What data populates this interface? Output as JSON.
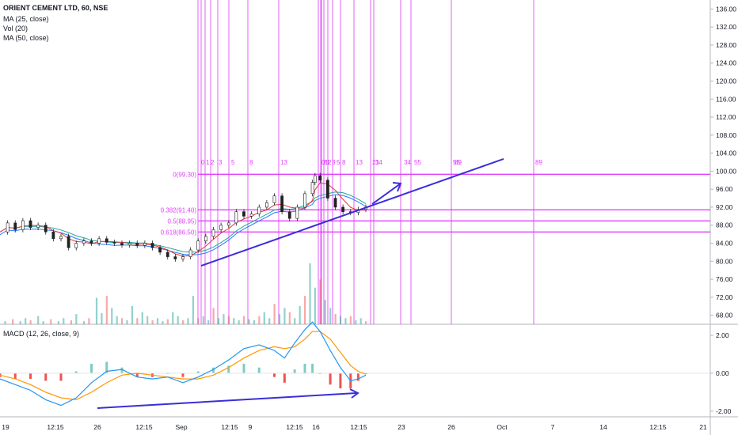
{
  "legend": {
    "symbol": "ORIENT CEMENT LTD, 60, NSE",
    "ma1": "MA (25, close)",
    "vol": "Vol (20)",
    "ma2": "MA (50, close)",
    "macd": "MACD (12, 26, close, 9)"
  },
  "chart_data": {
    "type": "candlestick",
    "price_axis": {
      "min": 66,
      "max": 138,
      "ticks": [
        "68.00",
        "72.00",
        "76.00",
        "80.00",
        "84.00",
        "88.00",
        "92.00",
        "96.00",
        "100.00",
        "104.00",
        "108.00",
        "112.00",
        "116.00",
        "120.00",
        "124.00",
        "128.00",
        "132.00",
        "136.00"
      ]
    },
    "macd_axis": {
      "min": -2.3,
      "max": 2.5,
      "ticks": [
        "2.00",
        "0.00",
        "-2.00"
      ]
    },
    "time_axis": {
      "ticks": [
        "19",
        "12:15",
        "26",
        "12:15",
        "Sep",
        "12:15",
        "9",
        "12:15",
        "16",
        "12:15",
        "23",
        "26",
        "Oct",
        "7",
        "14",
        "12:15",
        "21"
      ]
    },
    "fib_levels": [
      {
        "label": "0(99.30)",
        "value": 99.3
      },
      {
        "label": "0.382(91.40)",
        "value": 91.4
      },
      {
        "label": "0.5(88.95)",
        "value": 88.95
      },
      {
        "label": "0.618(86.50)",
        "value": 86.5
      }
    ],
    "fib_time_labels_1": [
      "0",
      "1",
      "2",
      "3",
      "5",
      "8",
      "13",
      "21",
      "34",
      "55",
      "89"
    ],
    "fib_time_labels_2": [
      "0",
      "1",
      "2",
      "3",
      "5",
      "8",
      "13",
      "21",
      "34",
      "55",
      "89"
    ],
    "price_path": [
      [
        0,
        86.5
      ],
      [
        3,
        88.5
      ],
      [
        6,
        87
      ],
      [
        9,
        89
      ],
      [
        12,
        87.5
      ],
      [
        15,
        88
      ],
      [
        18,
        86.5
      ],
      [
        21,
        85
      ],
      [
        24,
        85.5
      ],
      [
        27,
        83
      ],
      [
        30,
        84
      ],
      [
        33,
        84.5
      ],
      [
        36,
        84
      ],
      [
        39,
        85
      ],
      [
        42,
        84.2
      ],
      [
        45,
        84
      ],
      [
        48,
        83.6
      ],
      [
        51,
        84
      ],
      [
        54,
        83.5
      ],
      [
        57,
        84
      ],
      [
        60,
        83
      ],
      [
        63,
        82
      ],
      [
        66,
        81
      ],
      [
        69,
        80.5
      ],
      [
        72,
        81
      ],
      [
        75,
        82.5
      ],
      [
        78,
        84.5
      ],
      [
        81,
        85.5
      ],
      [
        84,
        87
      ],
      [
        87,
        88
      ],
      [
        90,
        88.5
      ],
      [
        93,
        91
      ],
      [
        96,
        90
      ],
      [
        99,
        90.5
      ],
      [
        102,
        92
      ],
      [
        105,
        93
      ],
      [
        108,
        94.5
      ],
      [
        111,
        91
      ],
      [
        114,
        89.5
      ],
      [
        117,
        92
      ],
      [
        120,
        95
      ],
      [
        123,
        97.5
      ],
      [
        124,
        99
      ],
      [
        126,
        98
      ],
      [
        129,
        94
      ],
      [
        132,
        92
      ],
      [
        135,
        91
      ],
      [
        138,
        90.8
      ],
      [
        141,
        91.5
      ],
      [
        144,
        92
      ]
    ],
    "volume": [
      [
        2,
        1.5
      ],
      [
        5,
        2.5
      ],
      [
        8,
        1.5
      ],
      [
        10,
        3
      ],
      [
        12,
        2
      ],
      [
        15,
        4
      ],
      [
        17,
        1.5
      ],
      [
        20,
        2.5
      ],
      [
        23,
        1.5
      ],
      [
        25,
        3
      ],
      [
        28,
        2
      ],
      [
        30,
        5
      ],
      [
        33,
        1.5
      ],
      [
        35,
        3
      ],
      [
        38,
        13
      ],
      [
        40,
        5.5
      ],
      [
        42,
        14
      ],
      [
        44,
        8
      ],
      [
        46,
        4
      ],
      [
        48,
        3
      ],
      [
        50,
        2
      ],
      [
        52,
        9
      ],
      [
        54,
        3
      ],
      [
        56,
        6
      ],
      [
        58,
        4
      ],
      [
        60,
        2
      ],
      [
        62,
        3
      ],
      [
        64,
        1.5
      ],
      [
        66,
        2.5
      ],
      [
        68,
        6
      ],
      [
        70,
        4
      ],
      [
        72,
        2
      ],
      [
        74,
        3
      ],
      [
        76,
        14
      ],
      [
        78,
        3
      ],
      [
        80,
        4
      ],
      [
        82,
        2
      ],
      [
        84,
        8
      ],
      [
        86,
        3
      ],
      [
        88,
        5
      ],
      [
        90,
        4
      ],
      [
        92,
        3
      ],
      [
        94,
        2
      ],
      [
        96,
        4
      ],
      [
        98,
        2.5
      ],
      [
        100,
        2
      ],
      [
        102,
        4
      ],
      [
        104,
        6
      ],
      [
        106,
        3
      ],
      [
        108,
        10
      ],
      [
        110,
        5
      ],
      [
        112,
        8
      ],
      [
        114,
        6
      ],
      [
        116,
        3
      ],
      [
        118,
        9
      ],
      [
        120,
        14
      ],
      [
        122,
        30
      ],
      [
        124,
        18
      ],
      [
        126,
        22
      ],
      [
        128,
        12
      ],
      [
        130,
        8
      ],
      [
        132,
        5
      ],
      [
        134,
        4
      ],
      [
        136,
        3
      ],
      [
        138,
        4
      ],
      [
        140,
        2
      ],
      [
        142,
        3
      ],
      [
        144,
        1.5
      ]
    ],
    "volume_max": 35,
    "macd_line": [
      [
        0,
        -0.3
      ],
      [
        6,
        -0.6
      ],
      [
        12,
        -0.9
      ],
      [
        18,
        -1.4
      ],
      [
        24,
        -1.7
      ],
      [
        30,
        -1.3
      ],
      [
        36,
        -0.5
      ],
      [
        42,
        0.1
      ],
      [
        48,
        0.2
      ],
      [
        54,
        -0.2
      ],
      [
        60,
        -0.3
      ],
      [
        66,
        -0.2
      ],
      [
        72,
        -0.5
      ],
      [
        78,
        -0.2
      ],
      [
        84,
        0.2
      ],
      [
        90,
        0.7
      ],
      [
        96,
        1.3
      ],
      [
        102,
        1.5
      ],
      [
        108,
        1.2
      ],
      [
        112,
        0.8
      ],
      [
        116,
        1.6
      ],
      [
        120,
        2.3
      ],
      [
        123,
        2.7
      ],
      [
        126,
        2.2
      ],
      [
        130,
        1.2
      ],
      [
        134,
        0.3
      ],
      [
        138,
        -0.4
      ],
      [
        141,
        -0.3
      ],
      [
        144,
        -0.1
      ]
    ],
    "signal_line": [
      [
        0,
        -0.1
      ],
      [
        6,
        -0.3
      ],
      [
        12,
        -0.6
      ],
      [
        18,
        -1.0
      ],
      [
        24,
        -1.3
      ],
      [
        30,
        -1.4
      ],
      [
        36,
        -1.0
      ],
      [
        42,
        -0.5
      ],
      [
        48,
        -0.1
      ],
      [
        54,
        0.0
      ],
      [
        60,
        -0.1
      ],
      [
        66,
        -0.2
      ],
      [
        72,
        -0.3
      ],
      [
        78,
        -0.3
      ],
      [
        84,
        -0.1
      ],
      [
        90,
        0.3
      ],
      [
        96,
        0.8
      ],
      [
        102,
        1.2
      ],
      [
        108,
        1.4
      ],
      [
        112,
        1.3
      ],
      [
        116,
        1.4
      ],
      [
        120,
        1.8
      ],
      [
        123,
        2.2
      ],
      [
        126,
        2.2
      ],
      [
        130,
        1.8
      ],
      [
        134,
        1.1
      ],
      [
        138,
        0.4
      ],
      [
        141,
        0.1
      ],
      [
        144,
        -0.05
      ]
    ]
  },
  "colors": {
    "up": "#26a69a",
    "down": "#ef5350",
    "fib": "#e040fb",
    "trend": "#3a2fd8",
    "ma_red": "#e53935",
    "ma_teal": "#26a69a",
    "ma_blue": "#2979ff",
    "macd_blue": "#2196f3",
    "signal_orange": "#ff9800",
    "axis_text": "#131722",
    "grid": "#f0f3fa"
  }
}
